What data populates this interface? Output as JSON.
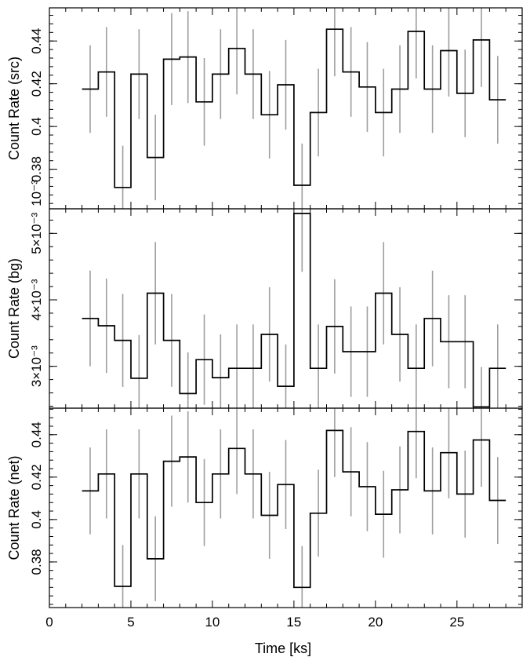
{
  "chart_data": {
    "type": "line",
    "style": "step-with-error-bars",
    "xlabel": "Time [ks]",
    "xlim": [
      0,
      29
    ],
    "x_ticks": [
      "0",
      "5",
      "10",
      "15",
      "20",
      "25"
    ],
    "bin_width": 1.0,
    "colors": {
      "line": "#000000",
      "error": "#9e9e9e",
      "axes": "#000000"
    },
    "panels": [
      {
        "id": "src",
        "ylabel": "Count Rate (src)",
        "ylim": [
          0.3615,
          0.4555
        ],
        "y_ticks": [
          "0.38",
          "0.4",
          "0.42",
          "0.44"
        ],
        "y_tick_values": [
          0.38,
          0.4,
          0.42,
          0.44
        ],
        "y_tick_prefix": "10⁻³",
        "bins": [
          {
            "x": 2.5,
            "y": 0.4175,
            "err": 0.0205
          },
          {
            "x": 3.5,
            "y": 0.4255,
            "err": 0.021
          },
          {
            "x": 4.5,
            "y": 0.3715,
            "err": 0.0195
          },
          {
            "x": 5.5,
            "y": 0.4245,
            "err": 0.021
          },
          {
            "x": 6.5,
            "y": 0.3855,
            "err": 0.02
          },
          {
            "x": 7.5,
            "y": 0.4315,
            "err": 0.0215
          },
          {
            "x": 8.5,
            "y": 0.4325,
            "err": 0.0215
          },
          {
            "x": 9.5,
            "y": 0.4115,
            "err": 0.0205
          },
          {
            "x": 10.5,
            "y": 0.4245,
            "err": 0.021
          },
          {
            "x": 11.5,
            "y": 0.4365,
            "err": 0.0215
          },
          {
            "x": 12.5,
            "y": 0.4245,
            "err": 0.021
          },
          {
            "x": 13.5,
            "y": 0.4055,
            "err": 0.0205
          },
          {
            "x": 14.5,
            "y": 0.4195,
            "err": 0.021
          },
          {
            "x": 15.5,
            "y": 0.3725,
            "err": 0.0195
          },
          {
            "x": 16.5,
            "y": 0.4065,
            "err": 0.0205
          },
          {
            "x": 17.5,
            "y": 0.4455,
            "err": 0.022
          },
          {
            "x": 18.5,
            "y": 0.4255,
            "err": 0.021
          },
          {
            "x": 19.5,
            "y": 0.4185,
            "err": 0.021
          },
          {
            "x": 20.5,
            "y": 0.4065,
            "err": 0.0205
          },
          {
            "x": 21.5,
            "y": 0.4175,
            "err": 0.0205
          },
          {
            "x": 22.5,
            "y": 0.4445,
            "err": 0.022
          },
          {
            "x": 23.5,
            "y": 0.4175,
            "err": 0.0205
          },
          {
            "x": 24.5,
            "y": 0.4355,
            "err": 0.0215
          },
          {
            "x": 25.5,
            "y": 0.4155,
            "err": 0.0205
          },
          {
            "x": 26.5,
            "y": 0.4405,
            "err": 0.022
          },
          {
            "x": 27.5,
            "y": 0.4125,
            "err": 0.0205
          }
        ]
      },
      {
        "id": "bg",
        "ylabel": "Count Rate (bg)",
        "ylim": [
          0.00237,
          0.00537
        ],
        "y_ticks": [
          "3×10⁻³",
          "4×10⁻³",
          "5×10⁻³"
        ],
        "y_tick_values": [
          0.003,
          0.004,
          0.005
        ],
        "bins": [
          {
            "x": 2.5,
            "y": 0.00372,
            "err": 0.00072
          },
          {
            "x": 3.5,
            "y": 0.00361,
            "err": 0.00071
          },
          {
            "x": 4.5,
            "y": 0.00339,
            "err": 0.0007
          },
          {
            "x": 5.5,
            "y": 0.00282,
            "err": 0.00065
          },
          {
            "x": 6.5,
            "y": 0.0041,
            "err": 0.00077
          },
          {
            "x": 7.5,
            "y": 0.00339,
            "err": 0.0007
          },
          {
            "x": 8.5,
            "y": 0.00259,
            "err": 0.00062
          },
          {
            "x": 9.5,
            "y": 0.0031,
            "err": 0.00068
          },
          {
            "x": 10.5,
            "y": 0.00283,
            "err": 0.00065
          },
          {
            "x": 11.5,
            "y": 0.00297,
            "err": 0.00066
          },
          {
            "x": 12.5,
            "y": 0.00297,
            "err": 0.00066
          },
          {
            "x": 13.5,
            "y": 0.00348,
            "err": 0.00071
          },
          {
            "x": 14.5,
            "y": 0.0027,
            "err": 0.00063
          },
          {
            "x": 15.5,
            "y": 0.0053,
            "err": 0.00088
          },
          {
            "x": 16.5,
            "y": 0.00297,
            "err": 0.00066
          },
          {
            "x": 17.5,
            "y": 0.0036,
            "err": 0.00071
          },
          {
            "x": 18.5,
            "y": 0.00322,
            "err": 0.00068
          },
          {
            "x": 19.5,
            "y": 0.00322,
            "err": 0.00068
          },
          {
            "x": 20.5,
            "y": 0.0041,
            "err": 0.00077
          },
          {
            "x": 21.5,
            "y": 0.00348,
            "err": 0.00071
          },
          {
            "x": 22.5,
            "y": 0.00297,
            "err": 0.00066
          },
          {
            "x": 23.5,
            "y": 0.00372,
            "err": 0.00072
          },
          {
            "x": 24.5,
            "y": 0.00337,
            "err": 0.0007
          },
          {
            "x": 25.5,
            "y": 0.00337,
            "err": 0.0007
          },
          {
            "x": 26.5,
            "y": 0.00239,
            "err": 0.0006
          },
          {
            "x": 27.5,
            "y": 0.00297,
            "err": 0.00066
          }
        ]
      },
      {
        "id": "net",
        "ylabel": "Count Rate (net)",
        "ylim": [
          0.3585,
          0.4525
        ],
        "y_ticks": [
          "0.38",
          "0.4",
          "0.42",
          "0.44"
        ],
        "y_tick_values": [
          0.38,
          0.4,
          0.42,
          0.44
        ],
        "bins": [
          {
            "x": 2.5,
            "y": 0.4135,
            "err": 0.0205
          },
          {
            "x": 3.5,
            "y": 0.4215,
            "err": 0.021
          },
          {
            "x": 4.5,
            "y": 0.3685,
            "err": 0.0195
          },
          {
            "x": 5.5,
            "y": 0.4215,
            "err": 0.021
          },
          {
            "x": 6.5,
            "y": 0.3815,
            "err": 0.02
          },
          {
            "x": 7.5,
            "y": 0.4275,
            "err": 0.0215
          },
          {
            "x": 8.5,
            "y": 0.4295,
            "err": 0.0215
          },
          {
            "x": 9.5,
            "y": 0.408,
            "err": 0.0205
          },
          {
            "x": 10.5,
            "y": 0.4215,
            "err": 0.021
          },
          {
            "x": 11.5,
            "y": 0.4335,
            "err": 0.0215
          },
          {
            "x": 12.5,
            "y": 0.4215,
            "err": 0.021
          },
          {
            "x": 13.5,
            "y": 0.402,
            "err": 0.0205
          },
          {
            "x": 14.5,
            "y": 0.4165,
            "err": 0.021
          },
          {
            "x": 15.5,
            "y": 0.368,
            "err": 0.0195
          },
          {
            "x": 16.5,
            "y": 0.403,
            "err": 0.0205
          },
          {
            "x": 17.5,
            "y": 0.442,
            "err": 0.022
          },
          {
            "x": 18.5,
            "y": 0.4225,
            "err": 0.021
          },
          {
            "x": 19.5,
            "y": 0.4155,
            "err": 0.021
          },
          {
            "x": 20.5,
            "y": 0.4025,
            "err": 0.0205
          },
          {
            "x": 21.5,
            "y": 0.414,
            "err": 0.0205
          },
          {
            "x": 22.5,
            "y": 0.4415,
            "err": 0.022
          },
          {
            "x": 23.5,
            "y": 0.4135,
            "err": 0.0205
          },
          {
            "x": 24.5,
            "y": 0.4315,
            "err": 0.0215
          },
          {
            "x": 25.5,
            "y": 0.412,
            "err": 0.0205
          },
          {
            "x": 26.5,
            "y": 0.4375,
            "err": 0.022
          },
          {
            "x": 27.5,
            "y": 0.409,
            "err": 0.0205
          }
        ]
      }
    ]
  }
}
